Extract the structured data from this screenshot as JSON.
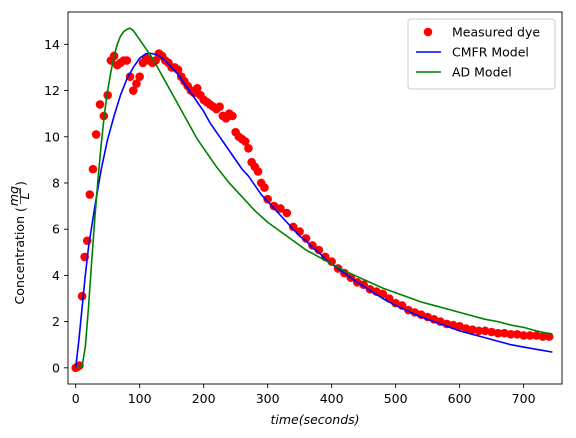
{
  "chart_data": {
    "type": "scatter",
    "xlabel": "time(seconds)",
    "ylabel": "Concentration (mg/L)",
    "ylabel_main": "Concentration",
    "ylabel_num": "mg",
    "ylabel_den": "L",
    "xlim": [
      -12,
      760
    ],
    "ylim": [
      -0.7,
      15.4
    ],
    "xticks": [
      0,
      100,
      200,
      300,
      400,
      500,
      600,
      700
    ],
    "yticks": [
      0,
      2,
      4,
      6,
      8,
      10,
      12,
      14
    ],
    "grid": false,
    "legend_position": "top-right",
    "series": [
      {
        "name": "Measured dye",
        "kind": "points",
        "color": "#ff0000",
        "x": [
          0,
          3,
          6,
          10,
          14,
          18,
          22,
          27,
          32,
          38,
          44,
          50,
          55,
          60,
          65,
          70,
          75,
          80,
          85,
          90,
          95,
          100,
          105,
          110,
          115,
          120,
          125,
          130,
          135,
          140,
          145,
          150,
          155,
          160,
          165,
          170,
          175,
          180,
          185,
          190,
          195,
          200,
          205,
          210,
          215,
          220,
          225,
          230,
          235,
          240,
          245,
          250,
          255,
          260,
          265,
          270,
          275,
          280,
          285,
          290,
          295,
          300,
          310,
          320,
          330,
          340,
          350,
          360,
          370,
          380,
          390,
          400,
          410,
          420,
          430,
          440,
          450,
          460,
          470,
          480,
          490,
          500,
          510,
          520,
          530,
          540,
          550,
          560,
          570,
          580,
          590,
          600,
          610,
          620,
          630,
          640,
          650,
          660,
          670,
          680,
          690,
          700,
          710,
          720,
          730,
          740
        ],
        "y": [
          0,
          0.05,
          0.1,
          3.1,
          4.8,
          5.5,
          7.5,
          8.6,
          10.1,
          11.4,
          10.9,
          11.8,
          13.3,
          13.5,
          13.1,
          13.2,
          13.3,
          13.3,
          12.6,
          12.0,
          12.3,
          12.6,
          13.2,
          13.4,
          13.3,
          13.2,
          13.3,
          13.6,
          13.5,
          13.3,
          13.2,
          13.0,
          13.0,
          12.9,
          12.6,
          12.4,
          12.2,
          12.0,
          11.9,
          12.1,
          11.8,
          11.6,
          11.5,
          11.4,
          11.3,
          11.2,
          11.3,
          10.9,
          10.8,
          11.0,
          10.9,
          10.2,
          10.0,
          9.9,
          9.8,
          9.5,
          8.9,
          8.7,
          8.5,
          8.0,
          7.8,
          7.3,
          7.0,
          6.9,
          6.7,
          6.1,
          5.9,
          5.6,
          5.3,
          5.1,
          4.8,
          4.6,
          4.3,
          4.1,
          3.9,
          3.7,
          3.6,
          3.4,
          3.3,
          3.2,
          3.0,
          2.8,
          2.7,
          2.5,
          2.4,
          2.3,
          2.2,
          2.1,
          2.0,
          1.9,
          1.85,
          1.8,
          1.7,
          1.65,
          1.6,
          1.6,
          1.55,
          1.5,
          1.5,
          1.45,
          1.45,
          1.4,
          1.4,
          1.4,
          1.35,
          1.35
        ]
      },
      {
        "name": "CMFR Model",
        "kind": "line",
        "color": "#0000ff",
        "x": [
          0,
          5,
          10,
          15,
          20,
          30,
          40,
          50,
          60,
          70,
          80,
          90,
          100,
          110,
          120,
          130,
          140,
          150,
          160,
          170,
          180,
          190,
          200,
          210,
          220,
          230,
          240,
          250,
          260,
          270,
          280,
          290,
          300,
          310,
          320,
          330,
          340,
          350,
          360,
          370,
          380,
          390,
          400,
          420,
          440,
          460,
          480,
          500,
          520,
          540,
          560,
          580,
          600,
          620,
          640,
          660,
          680,
          700,
          720,
          745
        ],
        "y": [
          0,
          1.2,
          2.6,
          4.0,
          5.2,
          7.0,
          8.6,
          9.9,
          10.9,
          11.8,
          12.5,
          13.0,
          13.4,
          13.6,
          13.6,
          13.5,
          13.3,
          13.0,
          12.7,
          12.3,
          11.9,
          11.5,
          11.1,
          10.6,
          10.2,
          9.8,
          9.4,
          9.0,
          8.6,
          8.3,
          7.9,
          7.5,
          7.2,
          6.9,
          6.6,
          6.3,
          6.0,
          5.7,
          5.5,
          5.2,
          5.0,
          4.7,
          4.5,
          4.1,
          3.7,
          3.35,
          3.0,
          2.7,
          2.45,
          2.2,
          2.0,
          1.8,
          1.6,
          1.45,
          1.3,
          1.15,
          1.0,
          0.9,
          0.8,
          0.68
        ]
      },
      {
        "name": "AD Model",
        "kind": "line",
        "color": "#008000",
        "x": [
          0,
          10,
          15,
          20,
          25,
          30,
          35,
          40,
          45,
          50,
          55,
          60,
          65,
          70,
          75,
          80,
          85,
          90,
          95,
          100,
          110,
          120,
          130,
          140,
          150,
          160,
          170,
          180,
          190,
          200,
          220,
          240,
          260,
          280,
          300,
          320,
          340,
          360,
          380,
          400,
          420,
          440,
          460,
          480,
          500,
          520,
          540,
          560,
          580,
          600,
          620,
          640,
          660,
          680,
          700,
          720,
          745
        ],
        "y": [
          0,
          0.05,
          0.9,
          2.6,
          4.6,
          6.5,
          8.2,
          9.7,
          11.0,
          12.0,
          12.8,
          13.5,
          14.0,
          14.35,
          14.55,
          14.65,
          14.7,
          14.6,
          14.4,
          14.2,
          13.8,
          13.4,
          12.9,
          12.4,
          11.9,
          11.4,
          10.9,
          10.4,
          9.9,
          9.5,
          8.7,
          8.0,
          7.4,
          6.8,
          6.3,
          5.9,
          5.5,
          5.1,
          4.8,
          4.5,
          4.2,
          3.95,
          3.7,
          3.45,
          3.25,
          3.05,
          2.85,
          2.7,
          2.55,
          2.4,
          2.25,
          2.1,
          2.0,
          1.85,
          1.75,
          1.6,
          1.45
        ]
      }
    ]
  }
}
